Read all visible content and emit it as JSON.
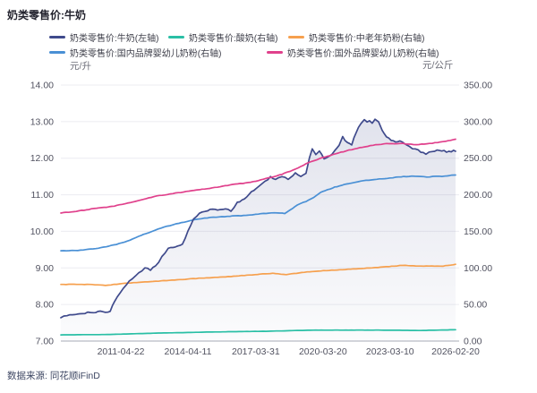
{
  "footer": {
    "source_label": "数据来源: 同花顺iFinD"
  },
  "chart_data": {
    "type": "line",
    "title": "奶类零售价:牛奶",
    "grid": true,
    "legend_position": "top",
    "left_axis": {
      "label": "元/升",
      "min": 7,
      "max": 14,
      "ticks": [
        "14.00",
        "13.00",
        "12.00",
        "11.00",
        "10.00",
        "9.00",
        "8.00",
        "7.00"
      ]
    },
    "right_axis": {
      "label": "元/公斤",
      "min": 0,
      "max": 350,
      "ticks": [
        "350.00",
        "300.00",
        "250.00",
        "200.00",
        "150.00",
        "100.00",
        "50.00",
        "0.00"
      ]
    },
    "x_ticks": [
      {
        "label": "2011-04-22",
        "pos": 0.152
      },
      {
        "label": "2014-04-11",
        "pos": 0.322
      },
      {
        "label": "2017-03-31",
        "pos": 0.494
      },
      {
        "label": "2020-03-20",
        "pos": 0.664
      },
      {
        "label": "2023-03-10",
        "pos": 0.834
      },
      {
        "label": "2026-02-20",
        "pos": 1.0
      }
    ],
    "series": [
      {
        "key": "milk",
        "name": "奶类零售价:牛奶(左轴)",
        "axis": "left",
        "color": "#3f4a8c",
        "area": true,
        "noise": 0.04,
        "points": [
          [
            0,
            7.64
          ],
          [
            0.023,
            7.72
          ],
          [
            0.054,
            7.76
          ],
          [
            0.082,
            7.79
          ],
          [
            0.1,
            7.81
          ],
          [
            0.113,
            7.78
          ],
          [
            0.125,
            7.83
          ],
          [
            0.136,
            8.1
          ],
          [
            0.15,
            8.32
          ],
          [
            0.166,
            8.55
          ],
          [
            0.181,
            8.72
          ],
          [
            0.197,
            8.85
          ],
          [
            0.213,
            9.0
          ],
          [
            0.227,
            8.95
          ],
          [
            0.24,
            9.05
          ],
          [
            0.256,
            9.3
          ],
          [
            0.272,
            9.52
          ],
          [
            0.29,
            9.58
          ],
          [
            0.308,
            9.65
          ],
          [
            0.322,
            10.0
          ],
          [
            0.336,
            10.32
          ],
          [
            0.351,
            10.5
          ],
          [
            0.372,
            10.58
          ],
          [
            0.397,
            10.6
          ],
          [
            0.417,
            10.62
          ],
          [
            0.431,
            10.55
          ],
          [
            0.447,
            10.78
          ],
          [
            0.465,
            10.9
          ],
          [
            0.483,
            11.07
          ],
          [
            0.501,
            11.22
          ],
          [
            0.517,
            11.35
          ],
          [
            0.531,
            11.48
          ],
          [
            0.544,
            11.42
          ],
          [
            0.56,
            11.5
          ],
          [
            0.576,
            11.42
          ],
          [
            0.594,
            11.6
          ],
          [
            0.608,
            11.5
          ],
          [
            0.621,
            11.57
          ],
          [
            0.63,
            12.0
          ],
          [
            0.637,
            12.25
          ],
          [
            0.646,
            12.1
          ],
          [
            0.655,
            12.2
          ],
          [
            0.667,
            11.98
          ],
          [
            0.68,
            12.05
          ],
          [
            0.694,
            12.2
          ],
          [
            0.705,
            12.35
          ],
          [
            0.714,
            12.58
          ],
          [
            0.726,
            12.42
          ],
          [
            0.737,
            12.38
          ],
          [
            0.748,
            12.7
          ],
          [
            0.76,
            12.95
          ],
          [
            0.769,
            13.06
          ],
          [
            0.776,
            13.0
          ],
          [
            0.782,
            13.02
          ],
          [
            0.789,
            12.95
          ],
          [
            0.796,
            13.05
          ],
          [
            0.805,
            12.98
          ],
          [
            0.814,
            12.75
          ],
          [
            0.825,
            12.6
          ],
          [
            0.837,
            12.5
          ],
          [
            0.848,
            12.45
          ],
          [
            0.859,
            12.48
          ],
          [
            0.871,
            12.38
          ],
          [
            0.884,
            12.3
          ],
          [
            0.898,
            12.25
          ],
          [
            0.912,
            12.18
          ],
          [
            0.925,
            12.12
          ],
          [
            0.941,
            12.18
          ],
          [
            0.959,
            12.22
          ],
          [
            0.977,
            12.18
          ],
          [
            0.995,
            12.2
          ],
          [
            1,
            12.19
          ]
        ]
      },
      {
        "key": "yogurt",
        "name": "奶类零售价:酸奶(右轴)",
        "axis": "right",
        "color": "#2abfa5",
        "area": false,
        "noise": 0.15,
        "points": [
          [
            0,
            8.5
          ],
          [
            0.118,
            9
          ],
          [
            0.254,
            11
          ],
          [
            0.39,
            12.5
          ],
          [
            0.526,
            13.5
          ],
          [
            0.639,
            15
          ],
          [
            0.798,
            15
          ],
          [
            0.912,
            14.5
          ],
          [
            1,
            15.5
          ]
        ]
      },
      {
        "key": "senior-milk-powder",
        "name": "奶类零售价:中老年奶粉(右轴)",
        "axis": "right",
        "color": "#f6a04e",
        "area": false,
        "noise": 0.5,
        "points": [
          [
            0,
            77.5
          ],
          [
            0.073,
            77.5
          ],
          [
            0.113,
            76
          ],
          [
            0.163,
            79
          ],
          [
            0.22,
            81
          ],
          [
            0.288,
            83.5
          ],
          [
            0.356,
            86
          ],
          [
            0.424,
            88
          ],
          [
            0.492,
            91
          ],
          [
            0.537,
            92.5
          ],
          [
            0.571,
            91
          ],
          [
            0.617,
            94
          ],
          [
            0.673,
            96.5
          ],
          [
            0.741,
            98.5
          ],
          [
            0.81,
            101
          ],
          [
            0.866,
            103.5
          ],
          [
            0.912,
            102.5
          ],
          [
            0.968,
            102.5
          ],
          [
            1,
            105
          ]
        ]
      },
      {
        "key": "domestic-infant-formula",
        "name": "奶类零售价:国内品牌婴幼儿奶粉(右轴)",
        "axis": "right",
        "color": "#4a90d5",
        "area": false,
        "noise": 0.7,
        "points": [
          [
            0,
            123.5
          ],
          [
            0.05,
            124
          ],
          [
            0.095,
            127
          ],
          [
            0.141,
            132
          ],
          [
            0.175,
            138
          ],
          [
            0.197,
            143
          ],
          [
            0.215,
            147
          ],
          [
            0.231,
            150
          ],
          [
            0.254,
            154.5
          ],
          [
            0.277,
            158
          ],
          [
            0.299,
            161
          ],
          [
            0.327,
            164.5
          ],
          [
            0.349,
            167
          ],
          [
            0.379,
            169
          ],
          [
            0.408,
            170
          ],
          [
            0.435,
            171
          ],
          [
            0.463,
            171.5
          ],
          [
            0.485,
            172.5
          ],
          [
            0.508,
            174
          ],
          [
            0.526,
            175
          ],
          [
            0.549,
            175.5
          ],
          [
            0.567,
            174.5
          ],
          [
            0.581,
            179
          ],
          [
            0.599,
            186
          ],
          [
            0.621,
            191
          ],
          [
            0.64,
            196
          ],
          [
            0.658,
            203
          ],
          [
            0.676,
            207
          ],
          [
            0.694,
            210.5
          ],
          [
            0.712,
            213
          ],
          [
            0.73,
            215.5
          ],
          [
            0.753,
            218
          ],
          [
            0.78,
            220
          ],
          [
            0.807,
            221.5
          ],
          [
            0.834,
            223
          ],
          [
            0.862,
            224.5
          ],
          [
            0.889,
            225.3
          ],
          [
            0.912,
            225.3
          ],
          [
            0.927,
            224
          ],
          [
            0.95,
            225.3
          ],
          [
            0.973,
            225.3
          ],
          [
            0.991,
            226.5
          ],
          [
            1,
            227
          ]
        ]
      },
      {
        "key": "foreign-infant-formula",
        "name": "奶类零售价:国外品牌婴幼儿奶粉(右轴)",
        "axis": "right",
        "color": "#e0418c",
        "area": false,
        "noise": 0.7,
        "points": [
          [
            0,
            175
          ],
          [
            0.039,
            177.5
          ],
          [
            0.084,
            181
          ],
          [
            0.129,
            184
          ],
          [
            0.175,
            189
          ],
          [
            0.209,
            194
          ],
          [
            0.243,
            198.5
          ],
          [
            0.277,
            201
          ],
          [
            0.311,
            204
          ],
          [
            0.345,
            206.5
          ],
          [
            0.39,
            210
          ],
          [
            0.435,
            214
          ],
          [
            0.481,
            217
          ],
          [
            0.526,
            223
          ],
          [
            0.56,
            228
          ],
          [
            0.594,
            235
          ],
          [
            0.628,
            244
          ],
          [
            0.662,
            250.5
          ],
          [
            0.696,
            256
          ],
          [
            0.73,
            261
          ],
          [
            0.764,
            265
          ],
          [
            0.798,
            268.5
          ],
          [
            0.832,
            270
          ],
          [
            0.866,
            270
          ],
          [
            0.9,
            268.5
          ],
          [
            0.934,
            270
          ],
          [
            0.968,
            272.5
          ],
          [
            1,
            276
          ]
        ]
      }
    ]
  }
}
